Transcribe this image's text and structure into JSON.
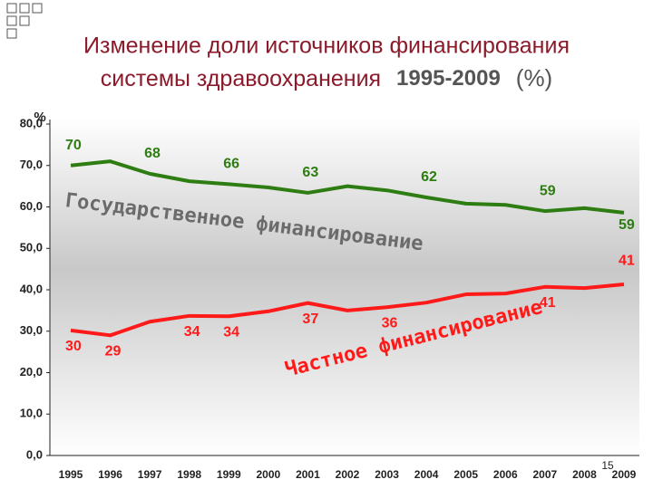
{
  "chart_data": {
    "type": "line",
    "title_line1": "Изменение доли источников финансирования",
    "title_line2": "системы здравоохранения",
    "title_years": "1995-2009",
    "title_unit": "(%)",
    "y_label": "%",
    "page_number": "15",
    "categories": [
      "1995",
      "1996",
      "1997",
      "1998",
      "1999",
      "2000",
      "2001",
      "2002",
      "2003",
      "2004",
      "2005",
      "2006",
      "2007",
      "2008",
      "2009"
    ],
    "series": [
      {
        "name": "Государственное финансирование",
        "color": "#2e7d12",
        "values": [
          70,
          71,
          68,
          66.2,
          65.5,
          64.7,
          63.4,
          65,
          64,
          62.3,
          60.8,
          60.5,
          59,
          59.7,
          58.6
        ],
        "value_labels": [
          "70",
          null,
          "68",
          null,
          "66",
          null,
          "63",
          null,
          null,
          "62",
          null,
          null,
          "59",
          null,
          "59"
        ]
      },
      {
        "name": "Частное финансирование",
        "color": "#ff1a1a",
        "values": [
          30.2,
          29,
          32.3,
          33.7,
          33.6,
          34.8,
          36.8,
          35,
          35.8,
          36.9,
          38.9,
          39.1,
          40.7,
          40.4,
          41.3
        ],
        "value_labels": [
          "30",
          "29",
          null,
          "34",
          "34",
          null,
          "37",
          null,
          "36",
          null,
          null,
          null,
          "41",
          null,
          "41"
        ]
      }
    ],
    "ylim": [
      0,
      80
    ],
    "yticks": [
      {
        "value": 0,
        "label": "0,0"
      },
      {
        "value": 10,
        "label": "10,0"
      },
      {
        "value": 20,
        "label": "20,0"
      },
      {
        "value": 30,
        "label": "30,0"
      },
      {
        "value": 40,
        "label": "40,0"
      },
      {
        "value": 50,
        "label": "50,0"
      },
      {
        "value": 60,
        "label": "60,0"
      },
      {
        "value": 70,
        "label": "70,0"
      },
      {
        "value": 80,
        "label": "80,0"
      }
    ],
    "grid": false
  }
}
